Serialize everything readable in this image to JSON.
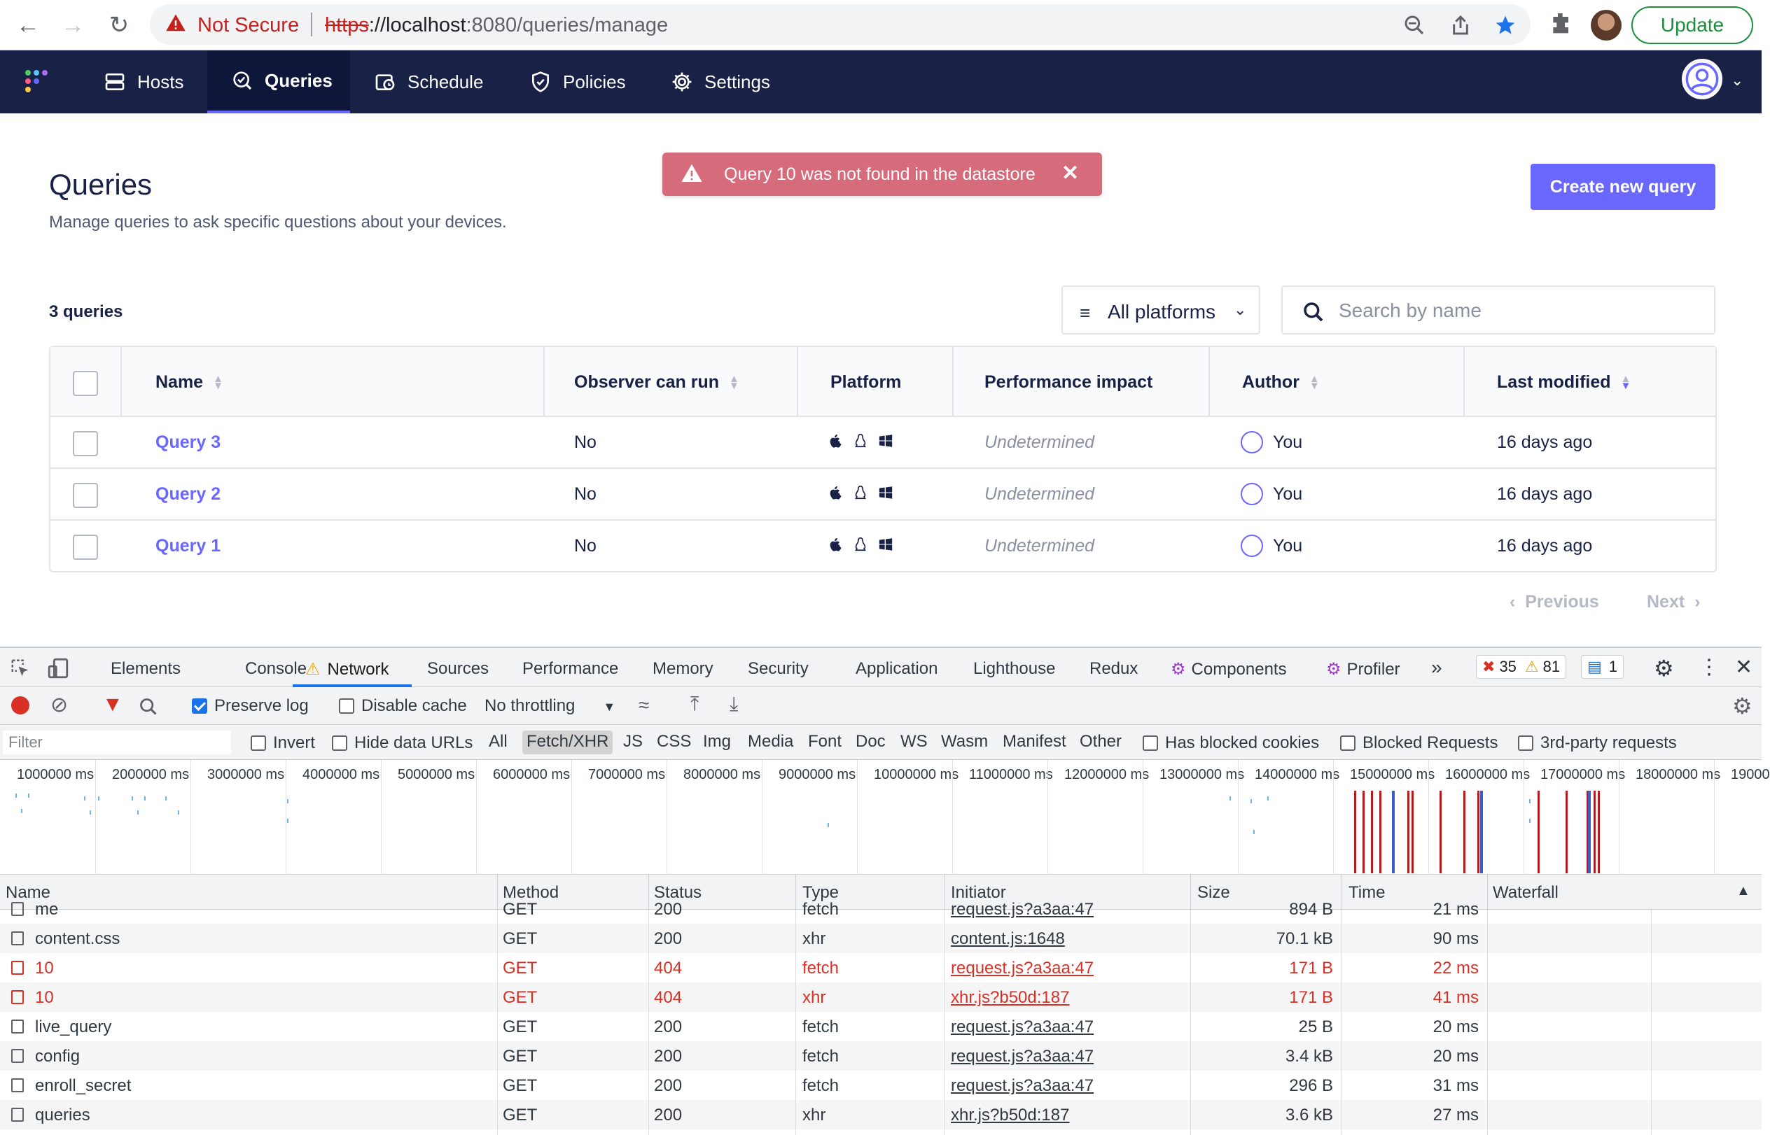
{
  "browser": {
    "omnibox": {
      "not_secure": "Not Secure",
      "scheme": "https",
      "host": "://localhost",
      "path": ":8080/queries/manage"
    },
    "update_label": "Update"
  },
  "nav": {
    "items": [
      {
        "label": "Hosts",
        "icon": "hosts-icon"
      },
      {
        "label": "Queries",
        "icon": "queries-icon",
        "active": true
      },
      {
        "label": "Schedule",
        "icon": "schedule-icon"
      },
      {
        "label": "Policies",
        "icon": "policies-icon"
      },
      {
        "label": "Settings",
        "icon": "settings-icon"
      }
    ]
  },
  "page": {
    "title": "Queries",
    "subtitle": "Manage queries to ask specific questions about your devices.",
    "flash": "Query 10 was not found in the datastore",
    "create_button": "Create new query",
    "count": "3 queries",
    "platform_filter": "All platforms",
    "search_placeholder": "Search by name"
  },
  "table": {
    "headers": [
      "Name",
      "Observer can run",
      "Platform",
      "Performance impact",
      "Author",
      "Last modified"
    ],
    "rows": [
      {
        "name": "Query 3",
        "observer": "No",
        "impact": "Undetermined",
        "author": "You",
        "modified": "16 days ago"
      },
      {
        "name": "Query 2",
        "observer": "No",
        "impact": "Undetermined",
        "author": "You",
        "modified": "16 days ago"
      },
      {
        "name": "Query 1",
        "observer": "No",
        "impact": "Undetermined",
        "author": "You",
        "modified": "16 days ago"
      }
    ]
  },
  "pager": {
    "previous": "Previous",
    "next": "Next"
  },
  "devtools": {
    "tabs": [
      "Elements",
      "Console",
      "Network",
      "Sources",
      "Performance",
      "Memory",
      "Security",
      "Application",
      "Lighthouse",
      "Redux",
      "Components",
      "Profiler"
    ],
    "errors": "35",
    "warnings": "81",
    "messages": "1",
    "toolbar": {
      "preserve_log": "Preserve log",
      "disable_cache": "Disable cache",
      "throttling": "No throttling"
    },
    "filterbar": {
      "placeholder": "Filter",
      "invert": "Invert",
      "hide_data": "Hide data URLs",
      "types": [
        "All",
        "Fetch/XHR",
        "JS",
        "CSS",
        "Img",
        "Media",
        "Font",
        "Doc",
        "WS",
        "Wasm",
        "Manifest",
        "Other"
      ],
      "blocked_cookies": "Has blocked cookies",
      "blocked_requests": "Blocked Requests",
      "third_party": "3rd-party requests"
    },
    "overview_ticks": [
      "1000000 ms",
      "2000000 ms",
      "3000000 ms",
      "4000000 ms",
      "5000000 ms",
      "6000000 ms",
      "7000000 ms",
      "8000000 ms",
      "9000000 ms",
      "10000000 ms",
      "11000000 ms",
      "12000000 ms",
      "13000000 ms",
      "14000000 ms",
      "15000000 ms",
      "16000000 ms",
      "17000000 ms",
      "18000000 ms",
      "19000"
    ],
    "columns": [
      "Name",
      "Method",
      "Status",
      "Type",
      "Initiator",
      "Size",
      "Time",
      "Waterfall"
    ],
    "requests": [
      {
        "name": "me",
        "method": "GET",
        "status": "200",
        "type": "fetch",
        "initiator": "request.js?a3aa:47",
        "size": "894 B",
        "time": "21 ms",
        "error": false
      },
      {
        "name": "content.css",
        "method": "GET",
        "status": "200",
        "type": "xhr",
        "initiator": "content.js:1648",
        "size": "70.1 kB",
        "time": "90 ms",
        "error": false
      },
      {
        "name": "10",
        "method": "GET",
        "status": "404",
        "type": "fetch",
        "initiator": "request.js?a3aa:47",
        "size": "171 B",
        "time": "22 ms",
        "error": true
      },
      {
        "name": "10",
        "method": "GET",
        "status": "404",
        "type": "xhr",
        "initiator": "xhr.js?b50d:187",
        "size": "171 B",
        "time": "41 ms",
        "error": true
      },
      {
        "name": "live_query",
        "method": "GET",
        "status": "200",
        "type": "fetch",
        "initiator": "request.js?a3aa:47",
        "size": "25 B",
        "time": "20 ms",
        "error": false
      },
      {
        "name": "config",
        "method": "GET",
        "status": "200",
        "type": "fetch",
        "initiator": "request.js?a3aa:47",
        "size": "3.4 kB",
        "time": "20 ms",
        "error": false
      },
      {
        "name": "enroll_secret",
        "method": "GET",
        "status": "200",
        "type": "fetch",
        "initiator": "request.js?a3aa:47",
        "size": "296 B",
        "time": "31 ms",
        "error": false
      },
      {
        "name": "queries",
        "method": "GET",
        "status": "200",
        "type": "xhr",
        "initiator": "xhr.js?b50d:187",
        "size": "3.6 kB",
        "time": "27 ms",
        "error": false
      }
    ]
  },
  "colors": {
    "brand": "#6a67fe",
    "nav_bg": "#192147",
    "flash_bg": "#d66c7b",
    "error": "#d93025"
  }
}
